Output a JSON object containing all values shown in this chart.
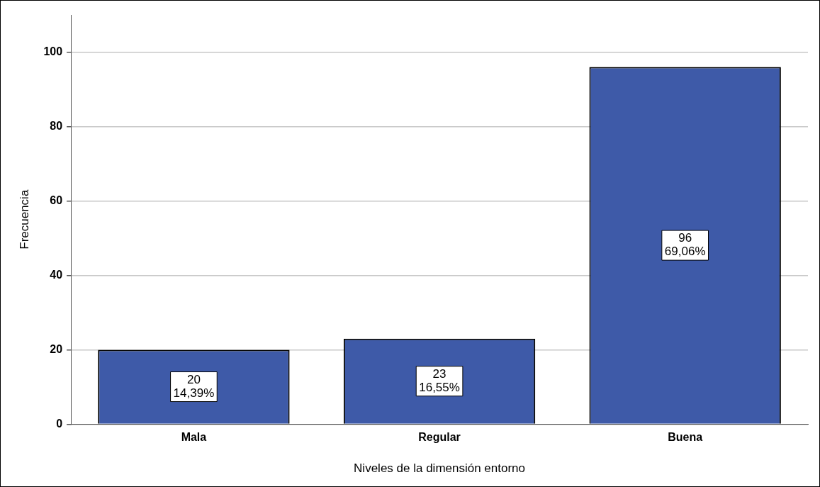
{
  "chart_data": {
    "type": "bar",
    "xlabel": "Niveles de la dimensión entorno",
    "ylabel": "Frecuencia",
    "categories": [
      "Mala",
      "Regular",
      "Buena"
    ],
    "values": [
      20,
      23,
      96
    ],
    "color": "#3e5aa8",
    "value_labels": [
      "20\n14,39%",
      "23\n16,55%",
      "96\n69,06%"
    ],
    "ylim": [
      0,
      110
    ],
    "yticks": [
      0,
      20,
      40,
      60,
      80,
      100
    ],
    "grid": "y",
    "legend": false
  }
}
